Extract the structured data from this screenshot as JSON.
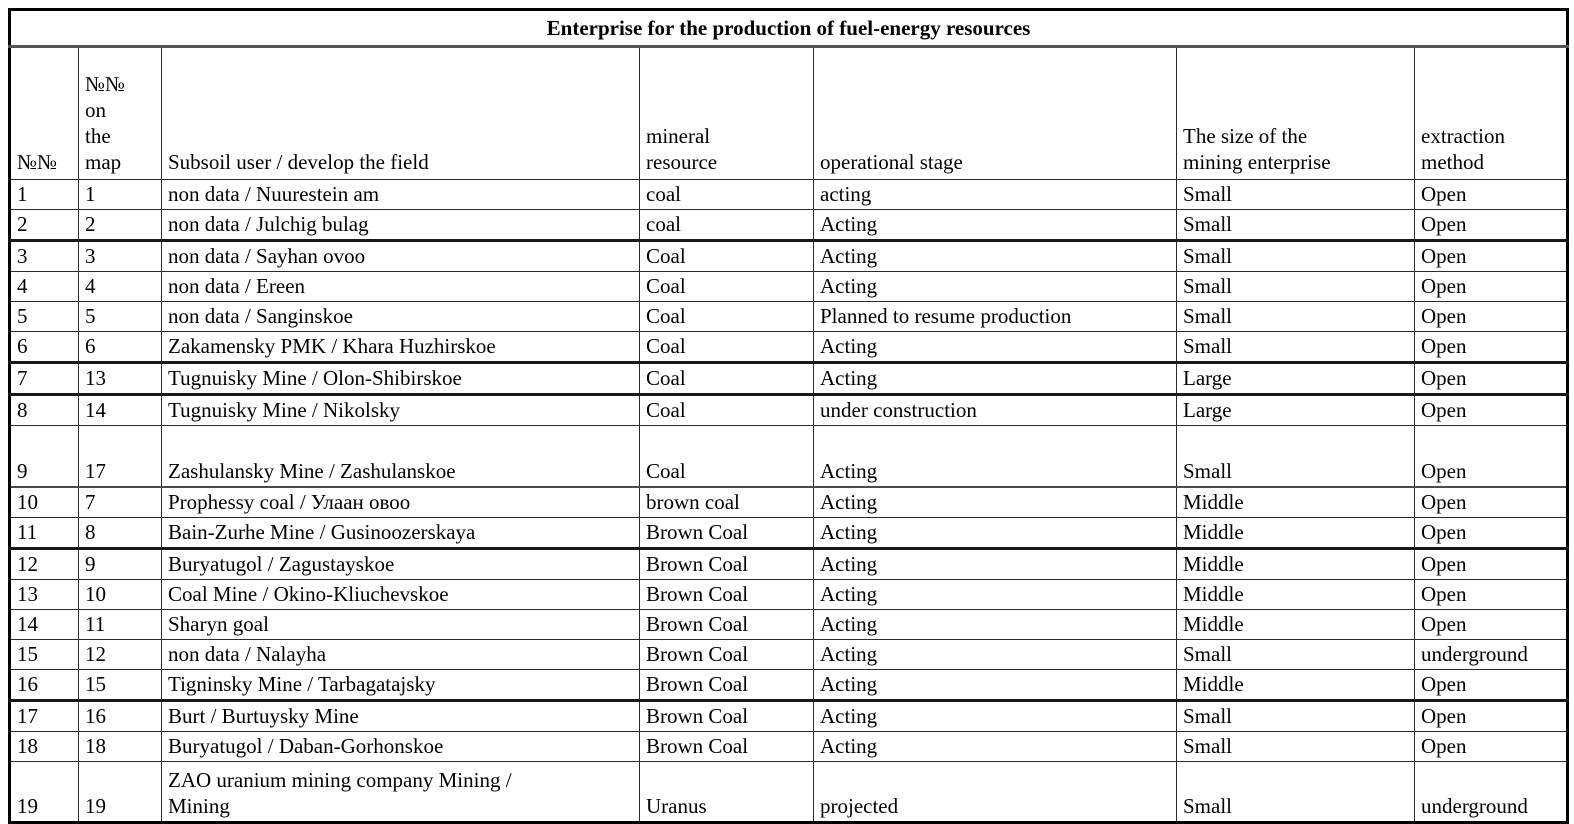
{
  "table": {
    "title": "Enterprise for the production of fuel-energy resources",
    "columns": [
      {
        "key": "num",
        "label": "№№"
      },
      {
        "key": "map",
        "label": "№№\non\nthe\nmap"
      },
      {
        "key": "user",
        "label": "Subsoil user / develop the field"
      },
      {
        "key": "mineral",
        "label": "mineral\nresource"
      },
      {
        "key": "stage",
        "label": "operational stage"
      },
      {
        "key": "size",
        "label": "The size of the\nmining enterprise"
      },
      {
        "key": "method",
        "label": "extraction\nmethod"
      }
    ],
    "rows": [
      {
        "num": "1",
        "map": "1",
        "user": "non data / Nuurestein am",
        "mineral": "coal",
        "stage": "acting",
        "size": "Small",
        "method": "Open",
        "tall": false,
        "divider": "thin"
      },
      {
        "num": "2",
        "map": "2",
        "user": "non data / Julchig bulag",
        "mineral": "coal",
        "stage": "Acting",
        "size": "Small",
        "method": "Open",
        "tall": false,
        "divider": "thick"
      },
      {
        "num": "3",
        "map": "3",
        "user": "non data / Sayhan ovoo",
        "mineral": "Coal",
        "stage": "Acting",
        "size": "Small",
        "method": "Open",
        "tall": false,
        "divider": "thin"
      },
      {
        "num": "4",
        "map": "4",
        "user": "non data / Ereen",
        "mineral": "Coal",
        "stage": "Acting",
        "size": "Small",
        "method": "Open",
        "tall": false,
        "divider": "thin"
      },
      {
        "num": "5",
        "map": "5",
        "user": "non data / Sanginskoe",
        "mineral": "Coal",
        "stage": "Planned to resume production",
        "size": "Small",
        "method": "Open",
        "tall": false,
        "divider": "thin"
      },
      {
        "num": "6",
        "map": "6",
        "user": "Zakamensky PMK / Khara Huzhirskoe",
        "mineral": "Coal",
        "stage": "Acting",
        "size": "Small",
        "method": "Open",
        "tall": false,
        "divider": "thick"
      },
      {
        "num": "7",
        "map": "13",
        "user": "Tugnuisky Mine / Olon-Shibirskoe",
        "mineral": "Coal",
        "stage": "Acting",
        "size": "Large",
        "method": "Open",
        "tall": false,
        "divider": "thick"
      },
      {
        "num": "8",
        "map": "14",
        "user": "Tugnuisky Mine / Nikolsky",
        "mineral": "Coal",
        "stage": "under construction",
        "size": "Large",
        "method": "Open",
        "tall": false,
        "divider": "thin"
      },
      {
        "num": "9",
        "map": "17",
        "user": "Zashulansky Mine / Zashulanskoe",
        "mineral": "Coal",
        "stage": "Acting",
        "size": "Small",
        "method": "Open",
        "tall": true,
        "divider": "medium"
      },
      {
        "num": "10",
        "map": "7",
        "user": "Prophessy coal /  Улаан овоо",
        "mineral": "brown coal",
        "stage": "Acting",
        "size": "Middle",
        "method": "Open",
        "tall": false,
        "divider": "thin"
      },
      {
        "num": "11",
        "map": "8",
        "user": "Bain-Zurhe Mine / Gusinoozerskaya",
        "mineral": "Brown Coal",
        "stage": "Acting",
        "size": "Middle",
        "method": "Open",
        "tall": false,
        "divider": "thick"
      },
      {
        "num": "12",
        "map": "9",
        "user": "Buryatugol / Zagustayskoe",
        "mineral": "Brown Coal",
        "stage": "Acting",
        "size": "Middle",
        "method": "Open",
        "tall": false,
        "divider": "thin"
      },
      {
        "num": "13",
        "map": "10",
        "user": "Coal Mine / Okino-Kliuchevskoe",
        "mineral": "Brown Coal",
        "stage": "Acting",
        "size": "Middle",
        "method": "Open",
        "tall": false,
        "divider": "thin"
      },
      {
        "num": "14",
        "map": "11",
        "user": "Sharyn goal",
        "mineral": "Brown Coal",
        "stage": "Acting",
        "size": "Middle",
        "method": "Open",
        "tall": false,
        "divider": "thin"
      },
      {
        "num": "15",
        "map": "12",
        "user": "non data / Nalayha",
        "mineral": "Brown Coal",
        "stage": "Acting",
        "size": "Small",
        "method": "underground",
        "tall": false,
        "divider": "thin"
      },
      {
        "num": "16",
        "map": "15",
        "user": "Tigninsky Mine / Tarbagatajsky",
        "mineral": "Brown Coal",
        "stage": "Acting",
        "size": "Middle",
        "method": "Open",
        "tall": false,
        "divider": "thick"
      },
      {
        "num": "17",
        "map": "16",
        "user": "Burt / Burtuysky Mine",
        "mineral": "Brown Coal",
        "stage": "Acting",
        "size": "Small",
        "method": "Open",
        "tall": false,
        "divider": "thin"
      },
      {
        "num": "18",
        "map": "18",
        "user": "Buryatugol / Daban-Gorhonskoe",
        "mineral": "Brown Coal",
        "stage": "Acting",
        "size": "Small",
        "method": "Open",
        "tall": false,
        "divider": "thin"
      },
      {
        "num": "19",
        "map": "19",
        "user": "ZAO uranium mining company Mining /\nMining",
        "mineral": "Uranus",
        "stage": "projected",
        "size": "Small",
        "method": "underground",
        "tall": true,
        "divider": "thin"
      }
    ]
  },
  "colors": {
    "background": "#ffffff",
    "text": "#000000",
    "grid_border": "#2a2a2a",
    "outer_border": "#000000"
  }
}
